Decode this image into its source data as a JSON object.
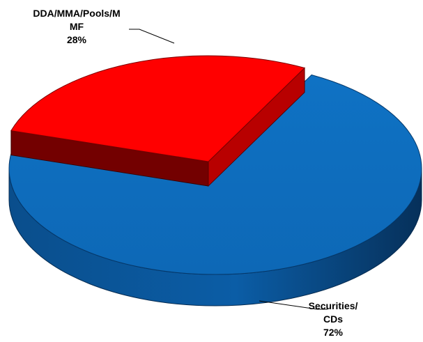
{
  "chart_data": {
    "type": "pie",
    "title": "",
    "style": "3d-exploded",
    "legend": "none",
    "slices": [
      {
        "label_lines": [
          "DDA/MMA/Pools/M",
          "MF",
          "28%"
        ],
        "value": 28,
        "color": "#FF0000",
        "exploded": true
      },
      {
        "label_lines": [
          "Securities/",
          "CDs",
          "72%"
        ],
        "value": 72,
        "color": "#0070C0",
        "exploded": false
      }
    ]
  }
}
